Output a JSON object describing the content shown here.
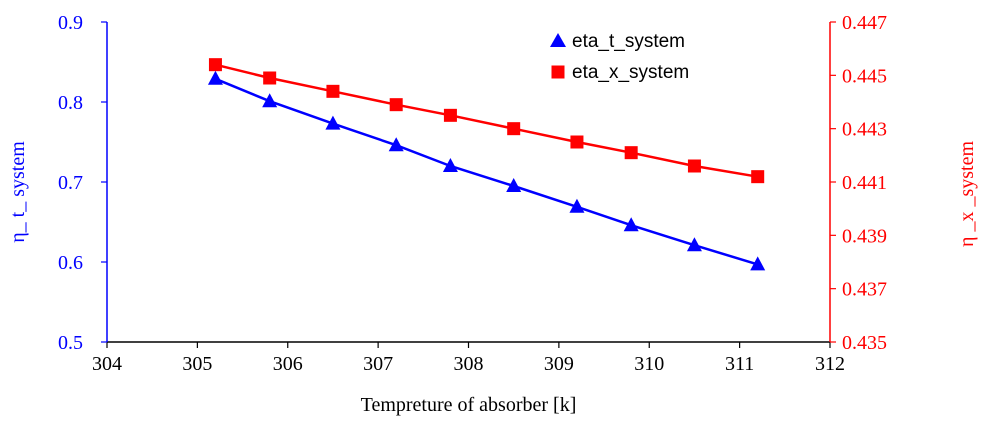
{
  "chart_data": {
    "type": "line",
    "xlabel": "Tempreture of absorber [k]",
    "ylabel_left": "η_ t_ system",
    "ylabel_right": "η _x _system",
    "xlim": [
      304,
      312
    ],
    "x_ticks": [
      "304",
      "305",
      "306",
      "307",
      "308",
      "309",
      "310",
      "311",
      "312"
    ],
    "ylim_left": [
      0.5,
      0.9
    ],
    "y_ticks_left": [
      "0.5",
      "0.6",
      "0.7",
      "0.8",
      "0.9"
    ],
    "ylim_right": [
      0.435,
      0.447
    ],
    "y_ticks_right": [
      "0.435",
      "0.437",
      "0.439",
      "0.441",
      "0.443",
      "0.445",
      "0.447"
    ],
    "grid": false,
    "legend_position": "top-right",
    "series": [
      {
        "name": "eta_t_system",
        "axis": "left",
        "color": "#0000ff",
        "marker": "triangle",
        "x": [
          305.2,
          305.8,
          306.5,
          307.2,
          307.8,
          308.5,
          309.2,
          309.8,
          310.5,
          311.2
        ],
        "y": [
          0.829,
          0.801,
          0.773,
          0.746,
          0.72,
          0.695,
          0.669,
          0.646,
          0.621,
          0.597
        ]
      },
      {
        "name": "eta_x_system",
        "axis": "right",
        "color": "#ff0000",
        "marker": "square",
        "x": [
          305.2,
          305.8,
          306.5,
          307.2,
          307.8,
          308.5,
          309.2,
          309.8,
          310.5,
          311.2
        ],
        "y": [
          0.4454,
          0.4449,
          0.4444,
          0.4439,
          0.4435,
          0.443,
          0.4425,
          0.4421,
          0.4416,
          0.4412
        ]
      }
    ]
  }
}
